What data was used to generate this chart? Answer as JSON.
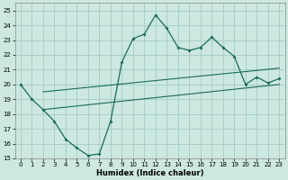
{
  "xlabel": "Humidex (Indice chaleur)",
  "xlim": [
    -0.5,
    23.5
  ],
  "ylim": [
    15,
    25.5
  ],
  "yticks": [
    15,
    16,
    17,
    18,
    19,
    20,
    21,
    22,
    23,
    24,
    25
  ],
  "xticks": [
    0,
    1,
    2,
    3,
    4,
    5,
    6,
    7,
    8,
    9,
    10,
    11,
    12,
    13,
    14,
    15,
    16,
    17,
    18,
    19,
    20,
    21,
    22,
    23
  ],
  "background_color": "#cce8e0",
  "grid_color": "#a8cfc8",
  "line_color": "#1a6b5a",
  "line1_x": [
    0,
    1,
    2,
    3,
    4,
    5,
    6,
    7,
    8,
    9,
    10,
    11,
    12,
    13,
    14,
    15,
    16,
    17,
    18,
    19,
    20,
    21,
    22,
    23
  ],
  "line1_y": [
    20.0,
    19.0,
    18.3,
    17.5,
    16.3,
    15.7,
    15.2,
    15.3,
    17.5,
    21.5,
    23.1,
    23.4,
    24.7,
    23.8,
    22.5,
    22.3,
    22.5,
    23.2,
    22.5,
    21.9,
    20.0,
    20.5,
    20.1,
    20.4
  ],
  "line2_x": [
    2,
    23
  ],
  "line2_y": [
    18.3,
    20.0
  ],
  "line3_x": [
    2,
    23
  ],
  "line3_y": [
    19.5,
    21.1
  ]
}
